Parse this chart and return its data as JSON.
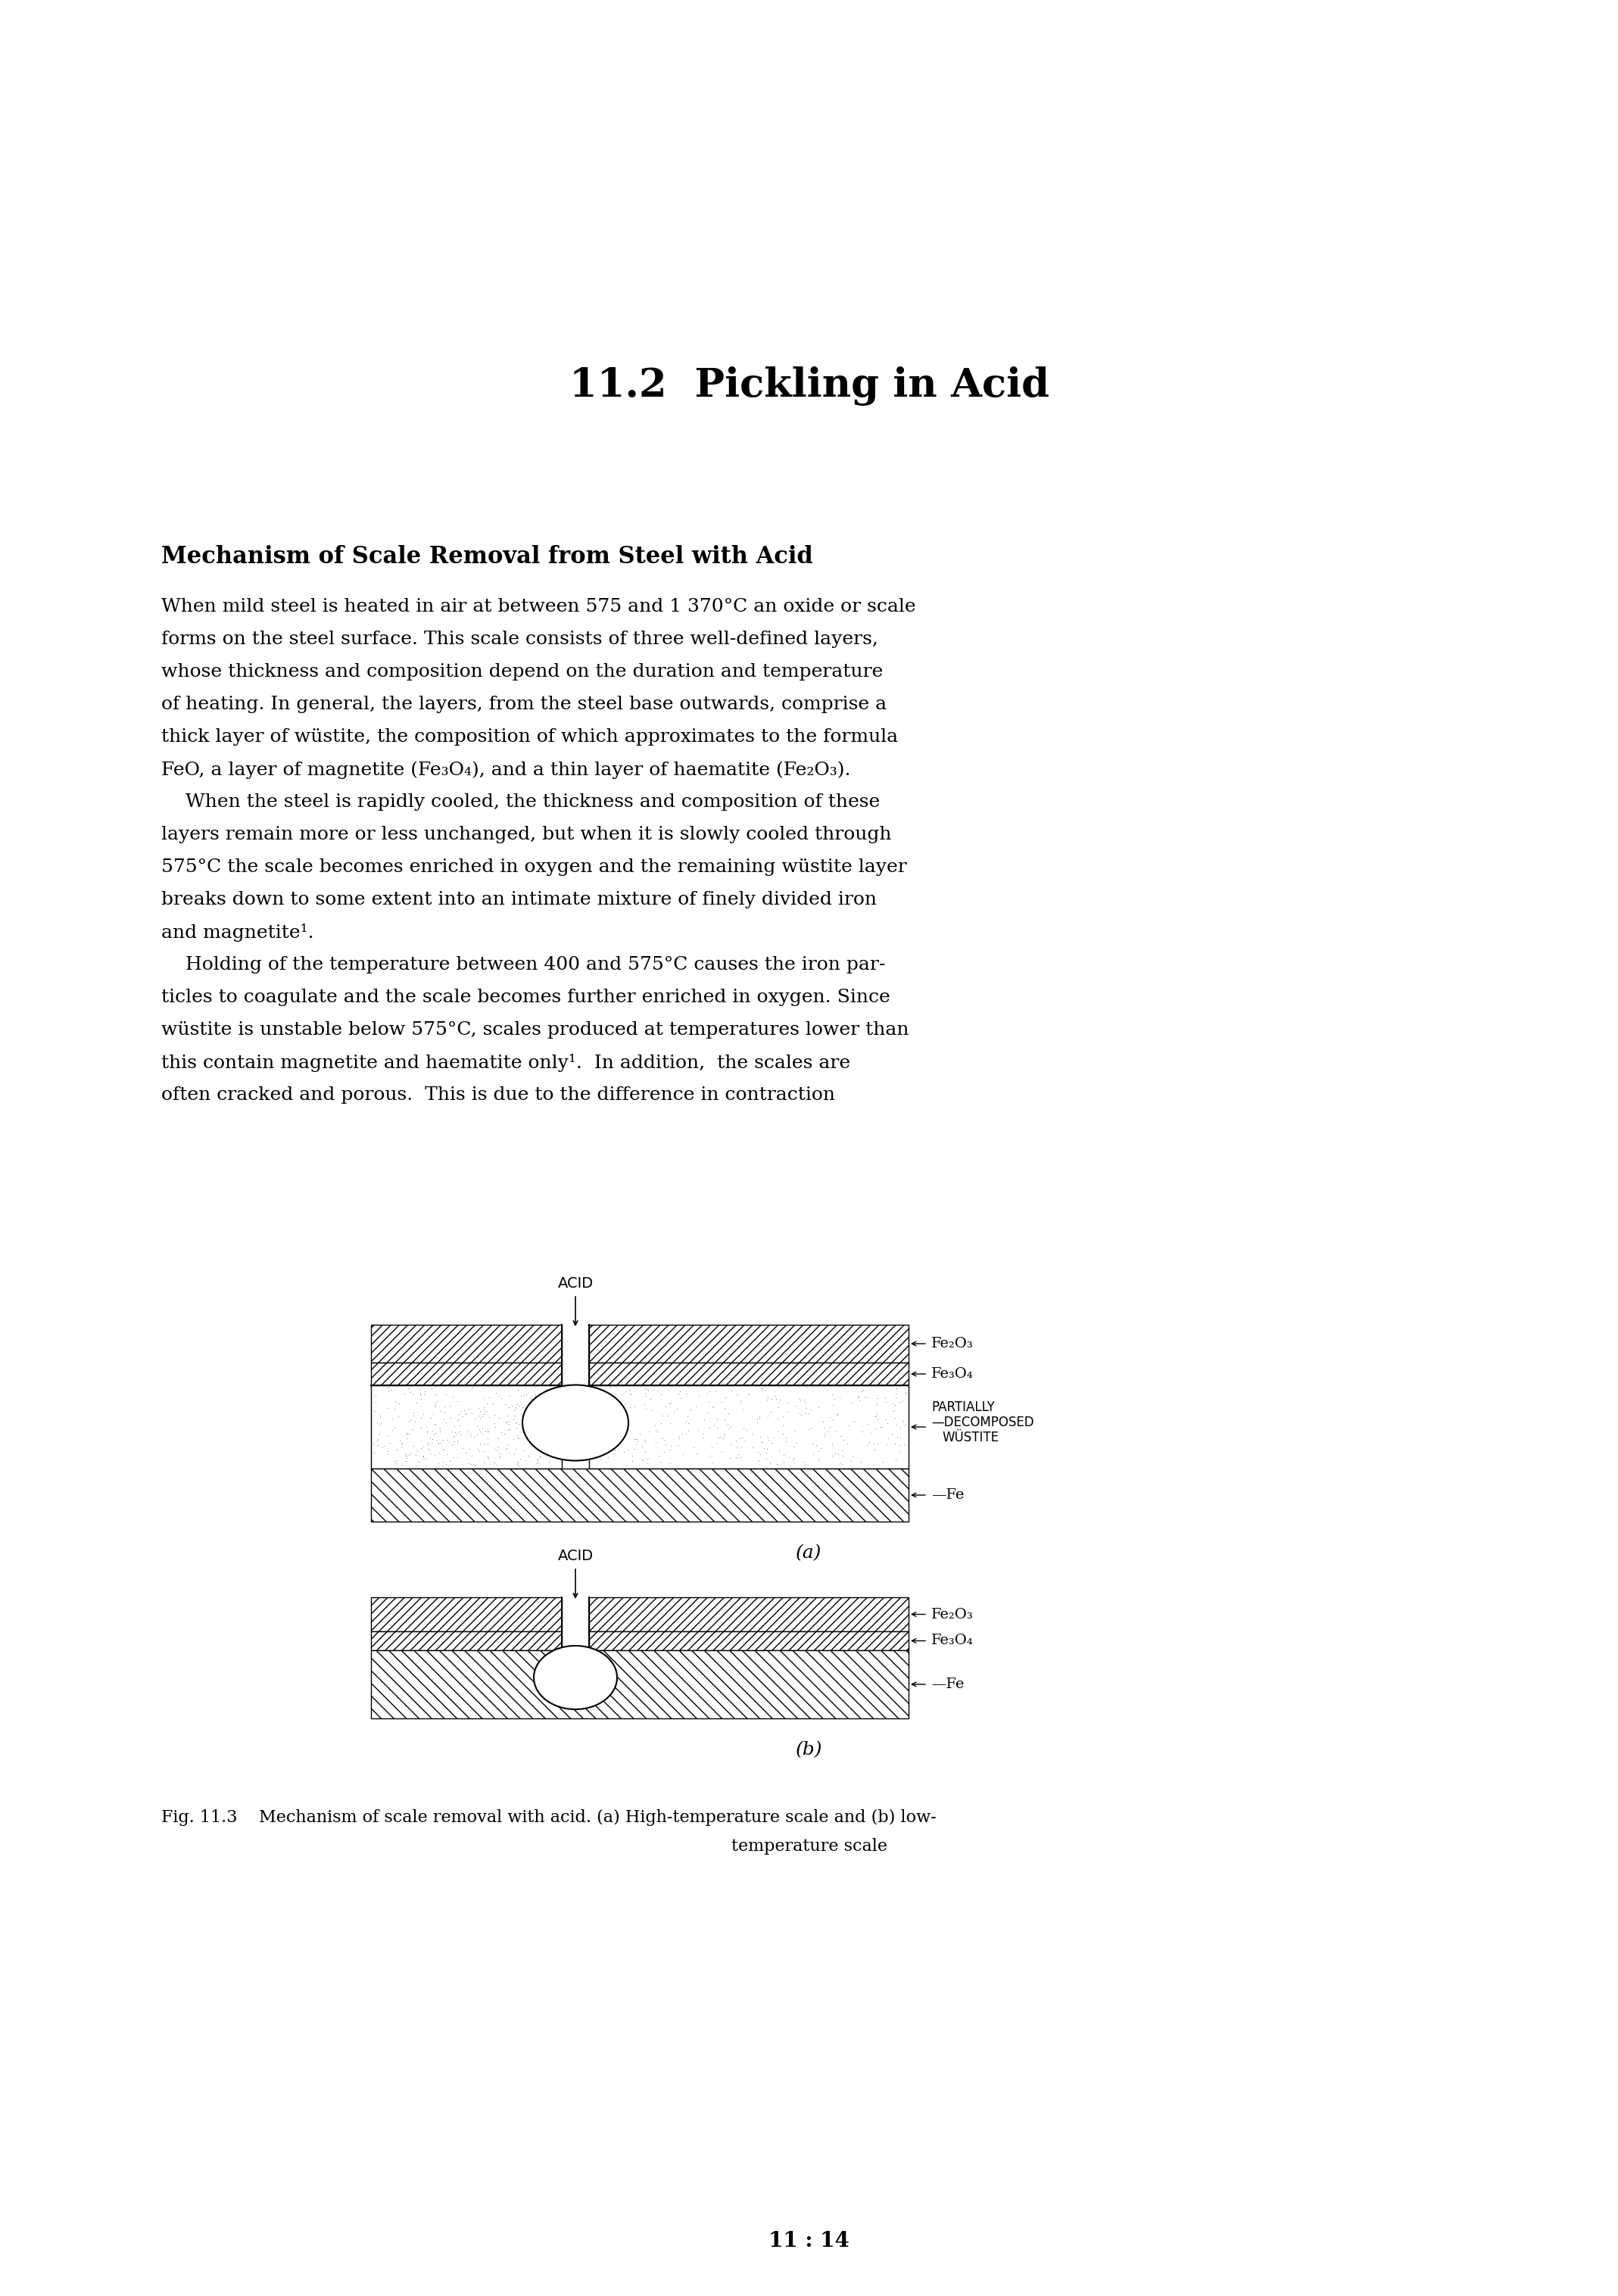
{
  "title": "11.2  Pickling in Acid",
  "section_heading": "Mechanism of Scale Removal from Steel with Acid",
  "body_text_para1": "When mild steel is heated in air at between 575 and 1 370°C an oxide or scale forms on the steel surface. This scale consists of three well-defined layers, whose thickness and composition depend on the duration and temperature of heating. In general, the layers, from the steel base outwards, comprise a thick layer of wüstite, the composition of which approximates to the formula FeO, a layer of magnetite (Fe₃O₄), and a thin layer of haematite (Fe₂O₃).",
  "body_text_para2": "    When the steel is rapidly cooled, the thickness and composition of these layers remain more or less unchanged, but when it is slowly cooled through 575°C the scale becomes enriched in oxygen and the remaining wüstite layer breaks down to some extent into an intimate mixture of finely divided iron and magnetite¹.",
  "body_text_para3": "    Holding of the temperature between 400 and 575°C causes the iron par-ticles to coagulate and the scale becomes further enriched in oxygen. Since wüstite is unstable below 575°C, scales produced at temperatures lower than this contain magnetite and haematite only¹. In addition, the scales are often cracked and porous. This is due to the difference in contraction",
  "label_a_fe2o3": "Fe₂O₃",
  "label_a_fe3o4": "Fe₃O₄",
  "label_a_partially": "PARTIALLY",
  "label_a_decomposed": "—DECOMPOSED",
  "label_a_wustite": "WÜSTITE",
  "label_a_fe": "—Fe",
  "label_b_fe2o3": "Fe₂O₃",
  "label_b_fe3o4": "Fe₃O₄",
  "label_b_fe": "—Fe",
  "caption_a": "(a)",
  "caption_b": "(b)",
  "acid_label": "ACID",
  "fig_caption_line1": "Fig. 11.3    Mechanism of scale removal with acid. (a) High-temperature scale and (b) low-",
  "fig_caption_line2": "temperature scale",
  "page_number": "11 : 14",
  "background_color": "#ffffff",
  "text_color": "#000000"
}
